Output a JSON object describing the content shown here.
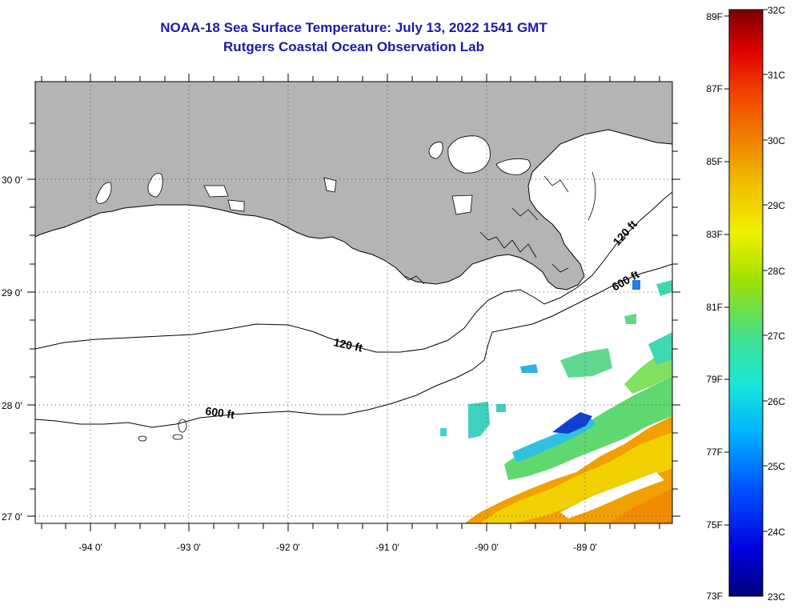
{
  "header": {
    "title": "NOAA-18 Sea Surface Temperature:  July 13, 2022 1541 GMT",
    "subtitle": "Rutgers Coastal Ocean Observation Lab"
  },
  "map": {
    "lon_ticks": [
      "-94 0'",
      "-93 0'",
      "-92 0'",
      "-91 0'",
      "-90 0'",
      "-89 0'"
    ],
    "lat_ticks": [
      "30 0'",
      "29 0'",
      "28 0'",
      "27 0'"
    ],
    "contours": {
      "shelf_120_west": "120 ft",
      "shelf_120_east": "120 ft",
      "slope_600_west": "600 ft",
      "slope_600_east": "600 ft"
    },
    "colors": {
      "land": "#b4b4b4",
      "ocean_nodata": "#ffffff",
      "coastline": "#000000",
      "grid": "#555555"
    }
  },
  "colorbar": {
    "fahrenheit": [
      "89F",
      "87F",
      "85F",
      "83F",
      "81F",
      "79F",
      "77F",
      "75F",
      "73F"
    ],
    "celsius": [
      "32C",
      "31C",
      "30C",
      "29C",
      "28C",
      "27C",
      "26C",
      "25C",
      "24C",
      "23C"
    ],
    "colors": [
      "#00007a",
      "#0000e0",
      "#0050ff",
      "#00b4ff",
      "#18e6d8",
      "#40e090",
      "#a0e000",
      "#f0f000",
      "#f0c000",
      "#f08000",
      "#f04000",
      "#e00000",
      "#7a0000"
    ]
  }
}
